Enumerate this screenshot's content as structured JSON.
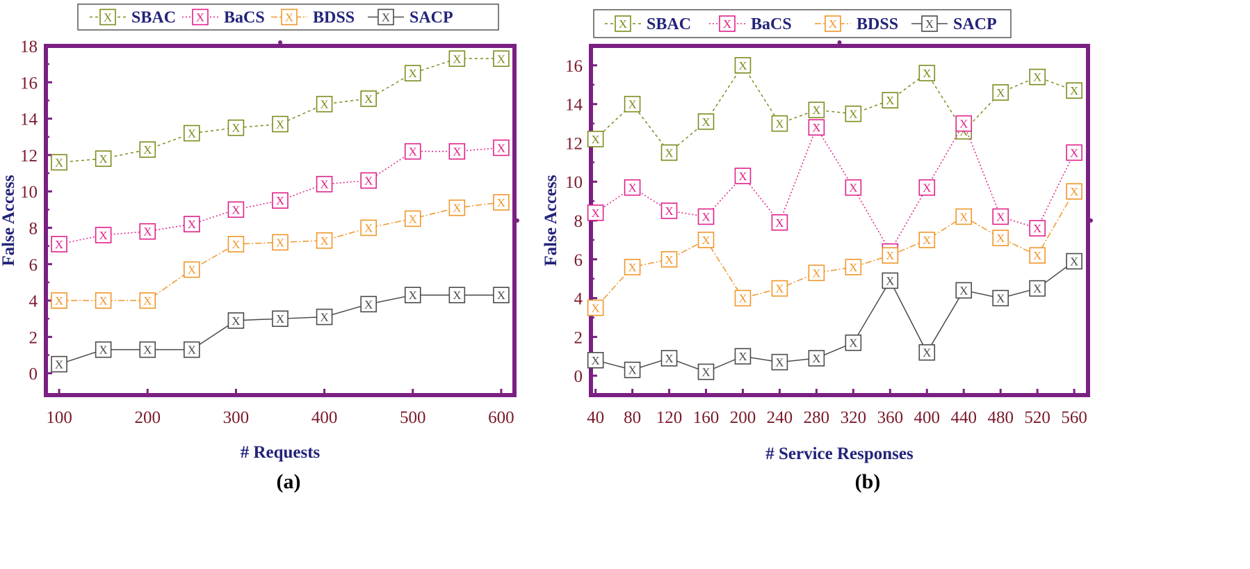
{
  "colors": {
    "SBAC": "#7f8a1c",
    "BaCS": "#e0208a",
    "BDSS": "#f0962a",
    "SACP": "#4a4a4a",
    "frame": "#7a2082",
    "tick_text": "#7a1a2a",
    "label_text": "#23237a"
  },
  "marker_glyph": "X",
  "chart_data": [
    {
      "type": "line",
      "panel_label": "(a)",
      "xlabel": "# Requests",
      "ylabel": "False Access",
      "xlim": [
        85,
        615
      ],
      "ylim": [
        -1.2,
        18
      ],
      "xticks": [
        100,
        200,
        300,
        400,
        500,
        600
      ],
      "yticks": [
        0,
        2,
        4,
        6,
        8,
        10,
        12,
        14,
        16,
        18
      ],
      "legend_position": "top",
      "x": [
        100,
        150,
        200,
        250,
        300,
        350,
        400,
        450,
        500,
        550,
        600
      ],
      "series": [
        {
          "name": "SBAC",
          "values": [
            11.6,
            11.8,
            12.3,
            13.2,
            13.5,
            13.7,
            14.8,
            15.1,
            16.5,
            17.3,
            17.3
          ]
        },
        {
          "name": "BaCS",
          "values": [
            7.1,
            7.6,
            7.8,
            8.2,
            9.0,
            9.5,
            10.4,
            10.6,
            12.2,
            12.2,
            12.4
          ]
        },
        {
          "name": "BDSS",
          "values": [
            4.0,
            4.0,
            4.0,
            5.7,
            7.1,
            7.2,
            7.3,
            8.0,
            8.5,
            9.1,
            9.4
          ]
        },
        {
          "name": "SACP",
          "values": [
            0.5,
            1.3,
            1.3,
            1.3,
            2.9,
            3.0,
            3.1,
            3.8,
            4.3,
            4.3,
            4.3
          ]
        }
      ]
    },
    {
      "type": "line",
      "panel_label": "(b)",
      "xlabel": "# Service Responses",
      "ylabel": "False Access",
      "xlim": [
        35,
        575
      ],
      "ylim": [
        -1.0,
        17.0
      ],
      "xticks": [
        40,
        80,
        120,
        160,
        200,
        240,
        280,
        320,
        360,
        400,
        440,
        480,
        520,
        560
      ],
      "yticks": [
        0,
        2,
        4,
        6,
        8,
        10,
        12,
        14,
        16
      ],
      "legend_position": "top",
      "x": [
        40,
        80,
        120,
        160,
        200,
        240,
        280,
        320,
        360,
        400,
        440,
        480,
        520,
        560
      ],
      "series": [
        {
          "name": "SBAC",
          "values": [
            12.2,
            14.0,
            11.5,
            13.1,
            16.0,
            13.0,
            13.7,
            13.5,
            14.2,
            15.6,
            12.6,
            14.6,
            15.4,
            14.7
          ]
        },
        {
          "name": "BaCS",
          "values": [
            8.4,
            9.7,
            8.5,
            8.2,
            10.3,
            7.9,
            12.8,
            9.7,
            6.4,
            9.7,
            13.0,
            8.2,
            7.6,
            11.5
          ]
        },
        {
          "name": "BDSS",
          "values": [
            3.5,
            5.6,
            6.0,
            7.0,
            4.0,
            4.5,
            5.3,
            5.6,
            6.2,
            7.0,
            8.2,
            7.1,
            6.2,
            9.5
          ]
        },
        {
          "name": "SACP",
          "values": [
            0.8,
            0.3,
            0.9,
            0.2,
            1.0,
            0.7,
            0.9,
            1.7,
            4.9,
            1.2,
            4.4,
            4.0,
            4.5,
            5.9
          ]
        }
      ]
    }
  ]
}
